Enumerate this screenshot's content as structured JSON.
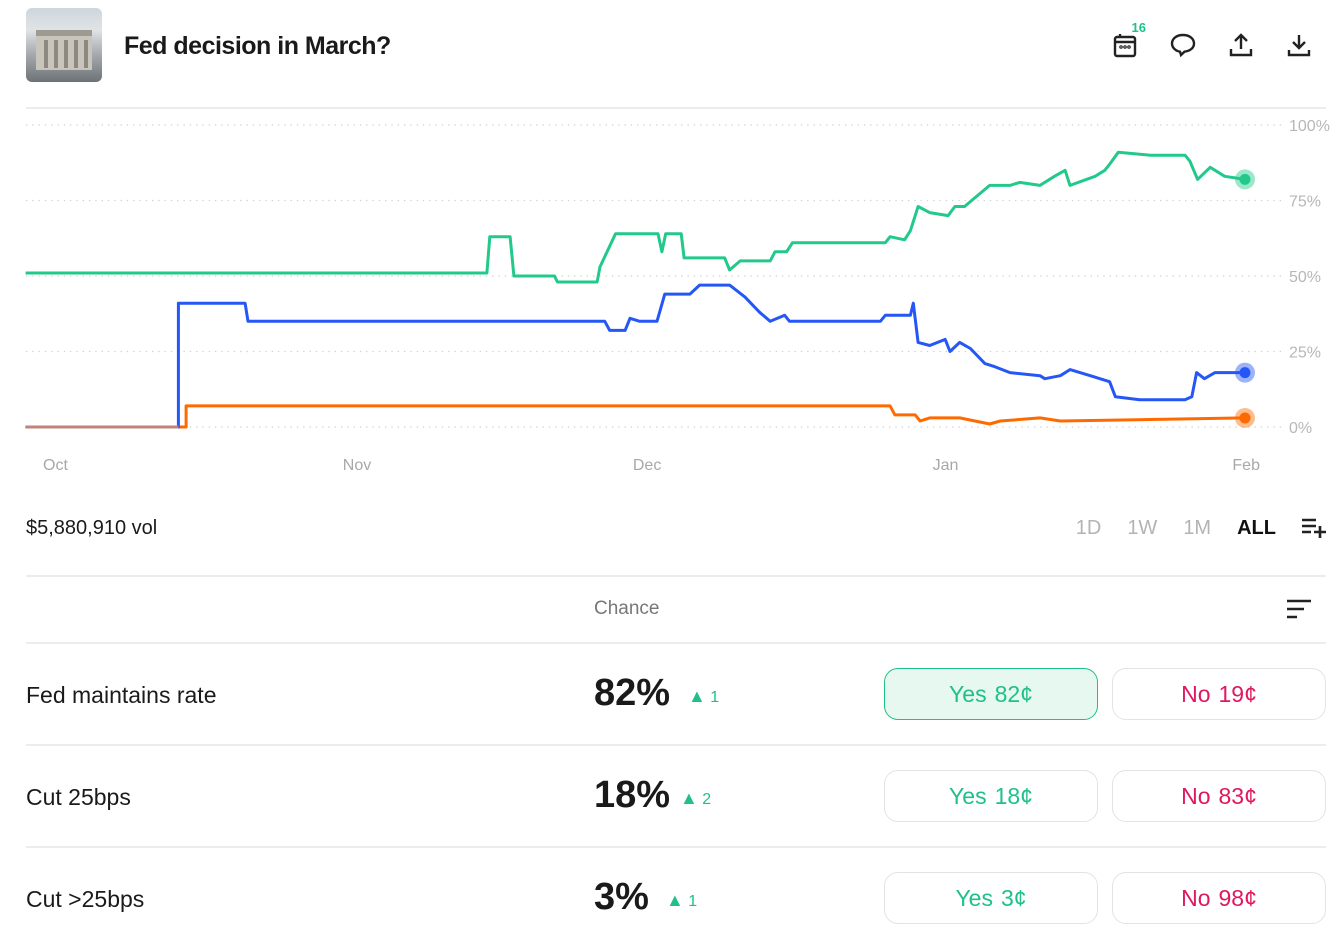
{
  "header": {
    "title": "Fed decision in March?",
    "calendar_badge": "16"
  },
  "volume": "$5,880,910 vol",
  "ranges": [
    "1D",
    "1W",
    "1M",
    "ALL"
  ],
  "active_range": "ALL",
  "table_header": "Chance",
  "colors": {
    "green": "#22c98a",
    "blue": "#2457f5",
    "orange": "#ff6a00",
    "yes": "#1fc08a",
    "no": "#e0185f"
  },
  "outcomes": [
    {
      "name": "Fed maintains rate",
      "chance": "82%",
      "delta": "1",
      "yes": "Yes",
      "yes_price": "82¢",
      "no": "No",
      "no_price": "19¢"
    },
    {
      "name": "Cut 25bps",
      "chance": "18%",
      "delta": "2",
      "yes": "Yes",
      "yes_price": "18¢",
      "no": "No",
      "no_price": "83¢"
    },
    {
      "name": "Cut >25bps",
      "chance": "3%",
      "delta": "1",
      "yes": "Yes",
      "yes_price": "3¢",
      "no": "No",
      "no_price": "98¢"
    }
  ],
  "chart_data": {
    "type": "line",
    "x_unit": "days since Oct 1",
    "xlim": [
      -1.8,
      124.3
    ],
    "ylim": [
      0,
      100
    ],
    "y_ticks": [
      "100%",
      "75%",
      "50%",
      "25%",
      "0%"
    ],
    "y_tick_values": [
      100,
      75,
      50,
      25,
      0
    ],
    "x_ticks": [
      "Oct",
      "Nov",
      "Dec",
      "Jan",
      "Feb"
    ],
    "x_tick_values": [
      0,
      31,
      61,
      92,
      123
    ],
    "series": [
      {
        "name": "Fed maintains rate",
        "color": "#22c98a",
        "points": [
          [
            -1.8,
            51
          ],
          [
            45.9,
            51
          ],
          [
            46.2,
            63
          ],
          [
            48.3,
            63
          ],
          [
            48.7,
            50
          ],
          [
            52.9,
            50
          ],
          [
            53.2,
            48
          ],
          [
            57.3,
            48
          ],
          [
            57.6,
            53
          ],
          [
            59.2,
            64
          ],
          [
            63.6,
            64
          ],
          [
            64.0,
            58
          ],
          [
            64.4,
            64
          ],
          [
            66.0,
            64
          ],
          [
            66.3,
            56
          ],
          [
            70.5,
            56
          ],
          [
            71.0,
            52
          ],
          [
            72.1,
            55
          ],
          [
            75.2,
            55
          ],
          [
            75.7,
            58
          ],
          [
            76.9,
            58
          ],
          [
            77.5,
            61
          ],
          [
            87.1,
            61
          ],
          [
            87.6,
            63
          ],
          [
            89.1,
            62
          ],
          [
            89.7,
            65
          ],
          [
            90.5,
            73
          ],
          [
            91.7,
            71
          ],
          [
            93.6,
            70
          ],
          [
            94.3,
            73
          ],
          [
            95.3,
            73
          ],
          [
            96.4,
            76
          ],
          [
            97.9,
            80
          ],
          [
            100.0,
            80
          ],
          [
            101.0,
            81
          ],
          [
            103.1,
            80
          ],
          [
            104.6,
            83
          ],
          [
            105.7,
            85
          ],
          [
            106.2,
            80
          ],
          [
            108.8,
            83
          ],
          [
            109.8,
            85
          ],
          [
            110.3,
            87
          ],
          [
            111.2,
            91
          ],
          [
            114.5,
            90
          ],
          [
            118.1,
            90
          ],
          [
            118.6,
            88
          ],
          [
            119.4,
            82
          ],
          [
            120.7,
            86
          ],
          [
            122.2,
            83
          ],
          [
            124.3,
            82
          ]
        ]
      },
      {
        "name": "Cut 25bps",
        "color": "#2457f5",
        "points": [
          [
            -1.8,
            0
          ],
          [
            14.0,
            0
          ],
          [
            14.0,
            41
          ],
          [
            20.9,
            41
          ],
          [
            21.2,
            35
          ],
          [
            58.1,
            35
          ],
          [
            58.6,
            32
          ],
          [
            60.2,
            32
          ],
          [
            60.7,
            36
          ],
          [
            61.7,
            35
          ],
          [
            63.5,
            35
          ],
          [
            64.3,
            44
          ],
          [
            66.9,
            44
          ],
          [
            67.9,
            47
          ],
          [
            71.0,
            47
          ],
          [
            72.6,
            43
          ],
          [
            74.1,
            38
          ],
          [
            75.2,
            35
          ],
          [
            76.7,
            37
          ],
          [
            77.2,
            35
          ],
          [
            86.6,
            35
          ],
          [
            87.1,
            37
          ],
          [
            89.7,
            37
          ],
          [
            90.0,
            41
          ],
          [
            90.5,
            28
          ],
          [
            91.7,
            27
          ],
          [
            93.3,
            29
          ],
          [
            93.8,
            25
          ],
          [
            94.8,
            28
          ],
          [
            95.9,
            26
          ],
          [
            97.4,
            21
          ],
          [
            98.4,
            20
          ],
          [
            100.0,
            18
          ],
          [
            103.1,
            17
          ],
          [
            103.6,
            16
          ],
          [
            105.2,
            17
          ],
          [
            106.2,
            19
          ],
          [
            108.3,
            17
          ],
          [
            110.3,
            15
          ],
          [
            110.9,
            10
          ],
          [
            113.4,
            9
          ],
          [
            118.1,
            9
          ],
          [
            118.8,
            10
          ],
          [
            119.3,
            18
          ],
          [
            120.1,
            16
          ],
          [
            121.2,
            18
          ],
          [
            124.3,
            18
          ]
        ]
      },
      {
        "name": "Cut >25bps",
        "color": "#ff6a00",
        "points": [
          [
            -1.8,
            0
          ],
          [
            14.8,
            0
          ],
          [
            14.8,
            7
          ],
          [
            87.6,
            7
          ],
          [
            88.1,
            4
          ],
          [
            90.2,
            4
          ],
          [
            90.7,
            2
          ],
          [
            91.7,
            3
          ],
          [
            94.8,
            3
          ],
          [
            97.9,
            1
          ],
          [
            99.0,
            2
          ],
          [
            103.1,
            3
          ],
          [
            105.2,
            2
          ],
          [
            124.3,
            3
          ]
        ]
      }
    ]
  }
}
